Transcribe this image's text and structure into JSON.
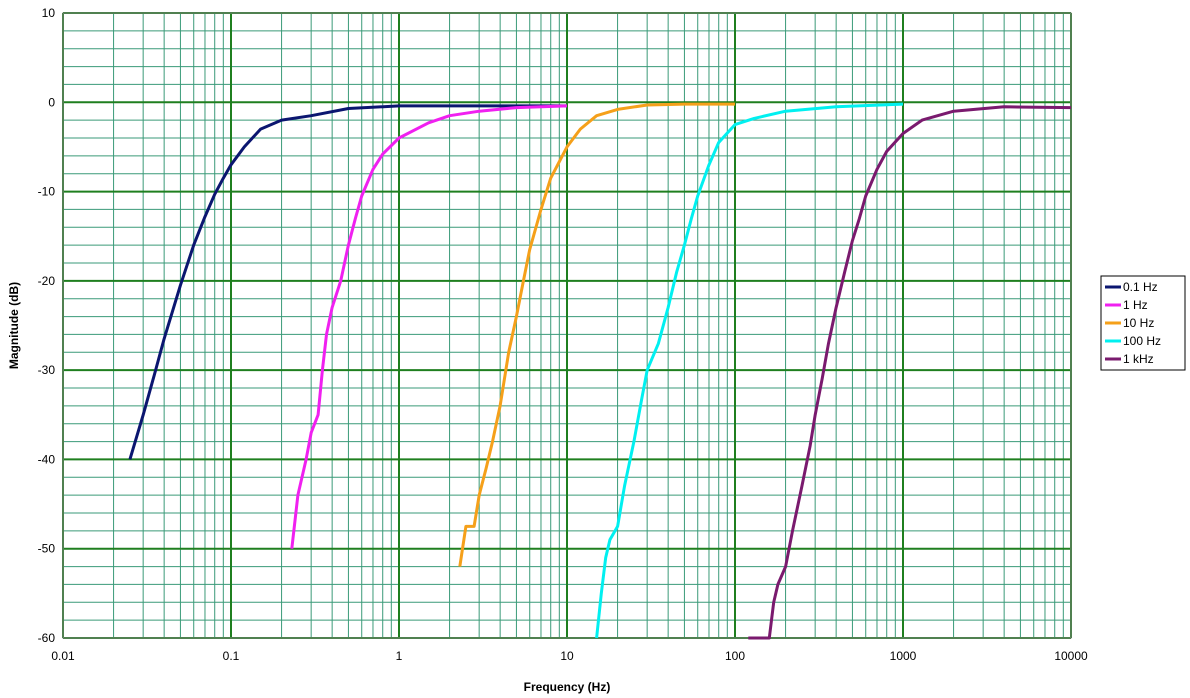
{
  "chart_data": {
    "type": "line",
    "title": "",
    "xlabel": "Frequency (Hz)",
    "ylabel": "Magnitude (dB)",
    "x_scale": "log",
    "xlim": [
      0.01,
      10000
    ],
    "ylim": [
      -60,
      10
    ],
    "x_ticks": [
      "0.01",
      "0.1",
      "1",
      "10",
      "100",
      "1000",
      "10000"
    ],
    "y_ticks": [
      "10",
      "0",
      "-10",
      "-20",
      "-30",
      "-40",
      "-50",
      "-60"
    ],
    "grid": true,
    "legend": "right",
    "colors": {
      "major_grid": "#1f7f1f",
      "minor_grid": "#3a9a78",
      "border": "#808080"
    },
    "series": [
      {
        "name": "0.1 Hz",
        "color": "#0b1670",
        "x": [
          0.025,
          0.03,
          0.035,
          0.04,
          0.05,
          0.06,
          0.07,
          0.08,
          0.09,
          0.1,
          0.12,
          0.15,
          0.2,
          0.3,
          0.5,
          1,
          2,
          5,
          10
        ],
        "y": [
          -40,
          -35,
          -30.5,
          -26.5,
          -20.5,
          -16,
          -12.8,
          -10.3,
          -8.5,
          -7,
          -5,
          -3,
          -2,
          -1.5,
          -0.7,
          -0.4,
          -0.4,
          -0.4,
          -0.4
        ]
      },
      {
        "name": "1 Hz",
        "color": "#f020f0",
        "x": [
          0.23,
          0.25,
          0.28,
          0.3,
          0.33,
          0.35,
          0.37,
          0.4,
          0.45,
          0.5,
          0.55,
          0.6,
          0.7,
          0.8,
          1,
          1.5,
          2,
          3,
          5,
          10
        ],
        "y": [
          -50,
          -44,
          -40,
          -37,
          -35,
          -30,
          -26,
          -23,
          -20,
          -16,
          -13,
          -10.5,
          -7.5,
          -5.8,
          -4,
          -2.3,
          -1.5,
          -1,
          -0.6,
          -0.4
        ]
      },
      {
        "name": "10 Hz",
        "color": "#f5a01a",
        "x": [
          2.3,
          2.5,
          2.8,
          3,
          3.3,
          3.6,
          4,
          4.5,
          5,
          5.5,
          6,
          7,
          8,
          10,
          12,
          15,
          20,
          30,
          50,
          100
        ],
        "y": [
          -52,
          -47.5,
          -47.5,
          -44,
          -41,
          -38,
          -34,
          -28,
          -24,
          -20,
          -16.5,
          -12,
          -8.5,
          -5,
          -3,
          -1.5,
          -0.8,
          -0.3,
          -0.2,
          -0.2
        ]
      },
      {
        "name": "100 Hz",
        "color": "#00f0f0",
        "x": [
          15,
          16,
          17,
          18,
          20,
          22,
          25,
          28,
          30,
          35,
          40,
          45,
          50,
          55,
          60,
          70,
          80,
          100,
          130,
          200,
          400,
          1000
        ],
        "y": [
          -60,
          -55,
          -51,
          -49,
          -47.5,
          -43,
          -38,
          -33,
          -30,
          -27,
          -23,
          -19,
          -16,
          -13,
          -10.5,
          -7,
          -4.5,
          -2.5,
          -1.8,
          -1,
          -0.5,
          -0.2
        ]
      },
      {
        "name": "1 kHz",
        "color": "#7a1a6e",
        "x": [
          120,
          125,
          160,
          165,
          170,
          180,
          200,
          220,
          250,
          280,
          300,
          330,
          360,
          400,
          450,
          500,
          550,
          600,
          700,
          800,
          1000,
          1300,
          2000,
          4000,
          10000
        ],
        "y": [
          -60,
          -60,
          -60,
          -58,
          -56,
          -54,
          -52,
          -48,
          -43,
          -38.5,
          -35,
          -31,
          -27,
          -23,
          -19,
          -15.5,
          -13,
          -10.5,
          -7.5,
          -5.5,
          -3.5,
          -2,
          -1,
          -0.5,
          -0.6
        ]
      }
    ]
  }
}
